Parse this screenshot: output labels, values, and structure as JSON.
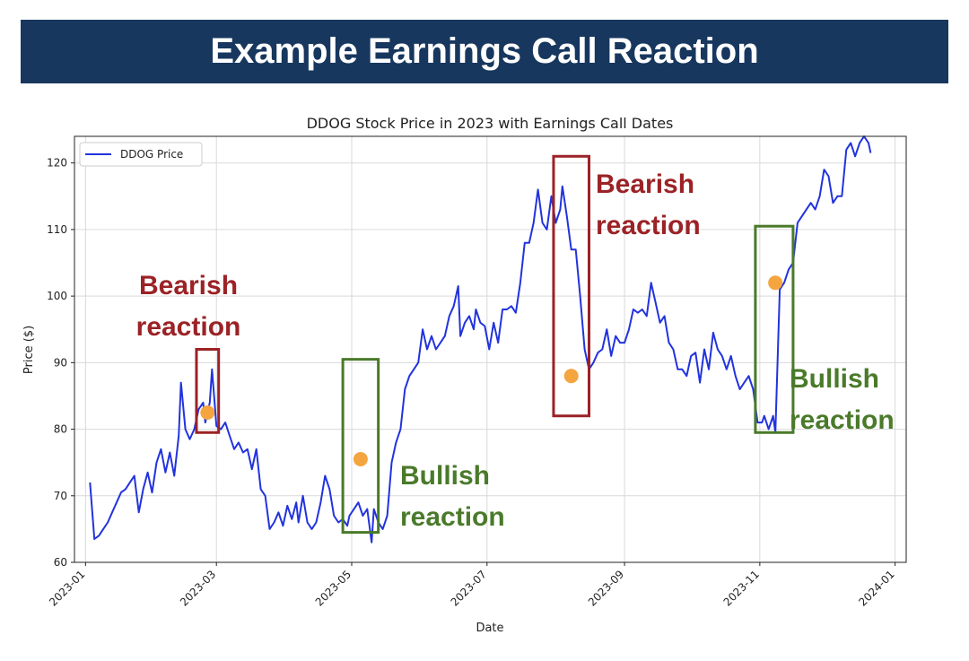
{
  "header": {
    "title": "Example Earnings Call Reaction"
  },
  "colors": {
    "banner": "#17375e",
    "line": "#2233dd",
    "marker": "#f5a540",
    "bearish": "#9b2226",
    "bullish": "#4a7a2a"
  },
  "chart_data": {
    "type": "line",
    "title": "DDOG Stock Price in 2023 with Earnings Call Dates",
    "xlabel": "Date",
    "ylabel": "Price ($)",
    "xlim": [
      -5,
      370
    ],
    "ylim": [
      60,
      124
    ],
    "grid": true,
    "legend": {
      "position": "top-left",
      "entries": [
        "DDOG Price"
      ]
    },
    "x_ticks": [
      {
        "label": "2023-01",
        "day": 0
      },
      {
        "label": "2023-03",
        "day": 59
      },
      {
        "label": "2023-05",
        "day": 120
      },
      {
        "label": "2023-07",
        "day": 181
      },
      {
        "label": "2023-09",
        "day": 243
      },
      {
        "label": "2023-11",
        "day": 304
      },
      {
        "label": "2024-01",
        "day": 365
      }
    ],
    "y_ticks": [
      60,
      70,
      80,
      90,
      100,
      110,
      120
    ],
    "series": [
      {
        "name": "DDOG Price",
        "color": "#2233dd",
        "x_unit": "days since 2023-01-01",
        "points": [
          [
            2,
            72
          ],
          [
            4,
            63.5
          ],
          [
            6,
            64
          ],
          [
            8,
            65
          ],
          [
            10,
            66
          ],
          [
            12,
            67.5
          ],
          [
            14,
            69
          ],
          [
            16,
            70.5
          ],
          [
            18,
            71
          ],
          [
            20,
            72
          ],
          [
            22,
            73
          ],
          [
            24,
            67.5
          ],
          [
            26,
            71
          ],
          [
            28,
            73.5
          ],
          [
            30,
            70.5
          ],
          [
            32,
            75
          ],
          [
            34,
            77
          ],
          [
            36,
            73.5
          ],
          [
            38,
            76.5
          ],
          [
            40,
            73
          ],
          [
            42,
            79
          ],
          [
            43,
            87
          ],
          [
            45,
            80
          ],
          [
            47,
            78.5
          ],
          [
            49,
            80
          ],
          [
            51,
            83
          ],
          [
            53,
            84
          ],
          [
            54,
            81
          ],
          [
            56,
            84
          ],
          [
            57,
            89
          ],
          [
            59,
            80.5
          ],
          [
            61,
            80
          ],
          [
            63,
            81
          ],
          [
            65,
            79
          ],
          [
            67,
            77
          ],
          [
            69,
            78
          ],
          [
            71,
            76.5
          ],
          [
            73,
            77
          ],
          [
            75,
            74
          ],
          [
            77,
            77
          ],
          [
            79,
            71
          ],
          [
            81,
            70
          ],
          [
            83,
            65
          ],
          [
            85,
            66
          ],
          [
            87,
            67.5
          ],
          [
            89,
            65.5
          ],
          [
            91,
            68.5
          ],
          [
            93,
            66.5
          ],
          [
            95,
            69
          ],
          [
            96,
            66
          ],
          [
            98,
            70
          ],
          [
            100,
            66
          ],
          [
            102,
            65
          ],
          [
            104,
            66
          ],
          [
            106,
            69
          ],
          [
            108,
            73
          ],
          [
            110,
            71
          ],
          [
            112,
            67
          ],
          [
            114,
            66
          ],
          [
            116,
            66.5
          ],
          [
            118,
            65.5
          ],
          [
            119,
            67
          ],
          [
            121,
            68
          ],
          [
            123,
            69
          ],
          [
            125,
            67
          ],
          [
            127,
            68
          ],
          [
            129,
            63
          ],
          [
            130,
            68
          ],
          [
            132,
            66
          ],
          [
            134,
            65
          ],
          [
            136,
            67
          ],
          [
            138,
            75
          ],
          [
            140,
            78
          ],
          [
            142,
            80
          ],
          [
            144,
            86
          ],
          [
            146,
            88
          ],
          [
            148,
            89
          ],
          [
            150,
            90
          ],
          [
            152,
            95
          ],
          [
            154,
            92
          ],
          [
            156,
            94
          ],
          [
            158,
            92
          ],
          [
            160,
            93
          ],
          [
            162,
            94
          ],
          [
            164,
            97
          ],
          [
            166,
            98.5
          ],
          [
            168,
            101.5
          ],
          [
            169,
            94
          ],
          [
            171,
            96
          ],
          [
            173,
            97
          ],
          [
            175,
            95
          ],
          [
            176,
            98
          ],
          [
            178,
            96
          ],
          [
            180,
            95.5
          ],
          [
            182,
            92
          ],
          [
            184,
            96
          ],
          [
            186,
            93
          ],
          [
            188,
            98
          ],
          [
            190,
            98
          ],
          [
            192,
            98.5
          ],
          [
            194,
            97.5
          ],
          [
            196,
            102
          ],
          [
            198,
            108
          ],
          [
            200,
            108
          ],
          [
            202,
            111
          ],
          [
            204,
            116
          ],
          [
            206,
            111
          ],
          [
            208,
            110
          ],
          [
            210,
            115
          ],
          [
            212,
            111
          ],
          [
            214,
            113
          ],
          [
            215,
            116.5
          ],
          [
            217,
            112
          ],
          [
            219,
            107
          ],
          [
            221,
            107
          ],
          [
            223,
            100
          ],
          [
            225,
            92
          ],
          [
            227,
            89
          ],
          [
            229,
            90
          ],
          [
            231,
            91.5
          ],
          [
            233,
            92
          ],
          [
            235,
            95
          ],
          [
            237,
            91
          ],
          [
            239,
            94
          ],
          [
            241,
            93
          ],
          [
            243,
            93
          ],
          [
            245,
            95
          ],
          [
            247,
            98
          ],
          [
            249,
            97.5
          ],
          [
            251,
            98
          ],
          [
            253,
            97
          ],
          [
            255,
            102
          ],
          [
            257,
            99
          ],
          [
            259,
            96
          ],
          [
            261,
            97
          ],
          [
            263,
            93
          ],
          [
            265,
            92
          ],
          [
            267,
            89
          ],
          [
            269,
            89
          ],
          [
            271,
            88
          ],
          [
            273,
            91
          ],
          [
            275,
            91.5
          ],
          [
            277,
            87
          ],
          [
            279,
            92
          ],
          [
            281,
            89
          ],
          [
            283,
            94.5
          ],
          [
            285,
            92
          ],
          [
            287,
            91
          ],
          [
            289,
            89
          ],
          [
            291,
            91
          ],
          [
            293,
            88
          ],
          [
            295,
            86
          ],
          [
            297,
            87
          ],
          [
            299,
            88
          ],
          [
            301,
            86
          ],
          [
            303,
            81
          ],
          [
            305,
            81
          ],
          [
            306,
            82
          ],
          [
            308,
            80
          ],
          [
            310,
            82
          ],
          [
            311,
            79.5
          ],
          [
            313,
            101
          ],
          [
            315,
            102
          ],
          [
            317,
            104
          ],
          [
            319,
            105
          ],
          [
            321,
            111
          ],
          [
            323,
            112
          ],
          [
            325,
            113
          ],
          [
            327,
            114
          ],
          [
            329,
            113
          ],
          [
            331,
            115
          ],
          [
            333,
            119
          ],
          [
            335,
            118
          ],
          [
            337,
            114
          ],
          [
            339,
            115
          ],
          [
            341,
            115
          ],
          [
            343,
            122
          ],
          [
            345,
            123
          ],
          [
            347,
            121
          ],
          [
            349,
            123
          ],
          [
            351,
            124
          ],
          [
            353,
            123
          ],
          [
            354,
            121.5
          ]
        ]
      }
    ],
    "earnings_markers": [
      {
        "day": 55,
        "price": 82.5
      },
      {
        "day": 124,
        "price": 75.5
      },
      {
        "day": 219,
        "price": 88
      },
      {
        "day": 311,
        "price": 102
      }
    ],
    "annotations": [
      {
        "type": "bearish",
        "line1": "Bearish",
        "line2": "reaction",
        "x0": 50,
        "x1": 60,
        "y0": 79.5,
        "y1": 92
      },
      {
        "type": "bullish",
        "line1": "Bullish",
        "line2": "reaction",
        "x0": 116,
        "x1": 132,
        "y0": 64.5,
        "y1": 90.5
      },
      {
        "type": "bearish",
        "line1": "Bearish",
        "line2": "reaction",
        "x0": 211,
        "x1": 227,
        "y0": 82,
        "y1": 121
      },
      {
        "type": "bullish",
        "line1": "Bullish",
        "line2": "reaction",
        "x0": 302,
        "x1": 319,
        "y0": 79.5,
        "y1": 110.5
      }
    ]
  }
}
